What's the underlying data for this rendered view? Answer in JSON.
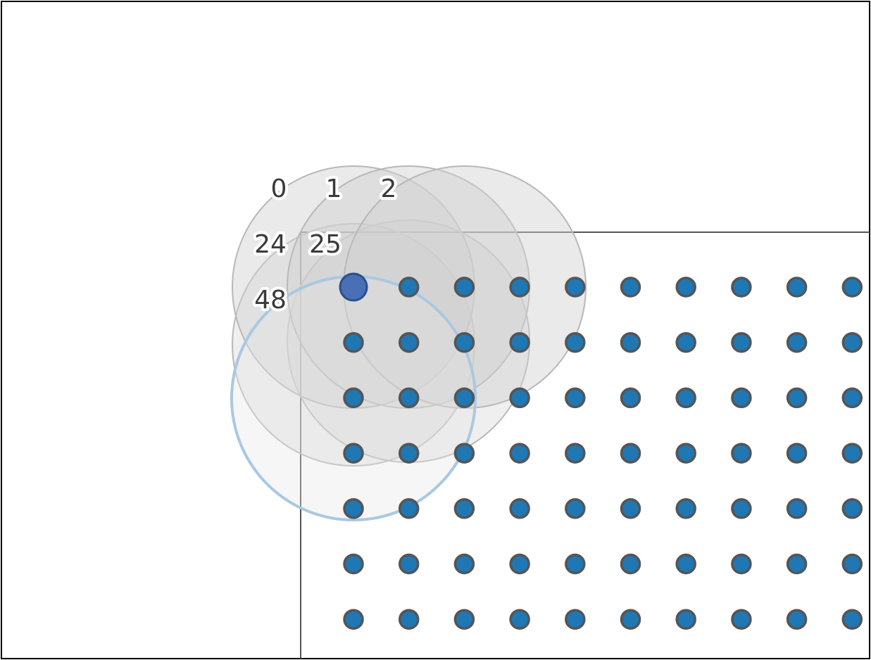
{
  "diagram": {
    "columns": 10,
    "rows": 7,
    "selected_point": {
      "row": 0,
      "col": 0
    },
    "point_labels": [
      {
        "text": "0"
      },
      {
        "text": "1"
      },
      {
        "text": "2"
      },
      {
        "text": "24"
      },
      {
        "text": "25"
      },
      {
        "text": "48"
      }
    ],
    "colors": {
      "point_fill": "#1f77b4",
      "point_stroke": "#555555",
      "selected_fill": "#4a6fb5",
      "selected_stroke": "#2a4f8a",
      "neighborhood_fill": "#d0d0d0",
      "neighborhood_stroke": "#b8b8b8",
      "active_ring_stroke": "#a9c8e2",
      "panel_line": "#555555",
      "frame": "#000000"
    }
  }
}
